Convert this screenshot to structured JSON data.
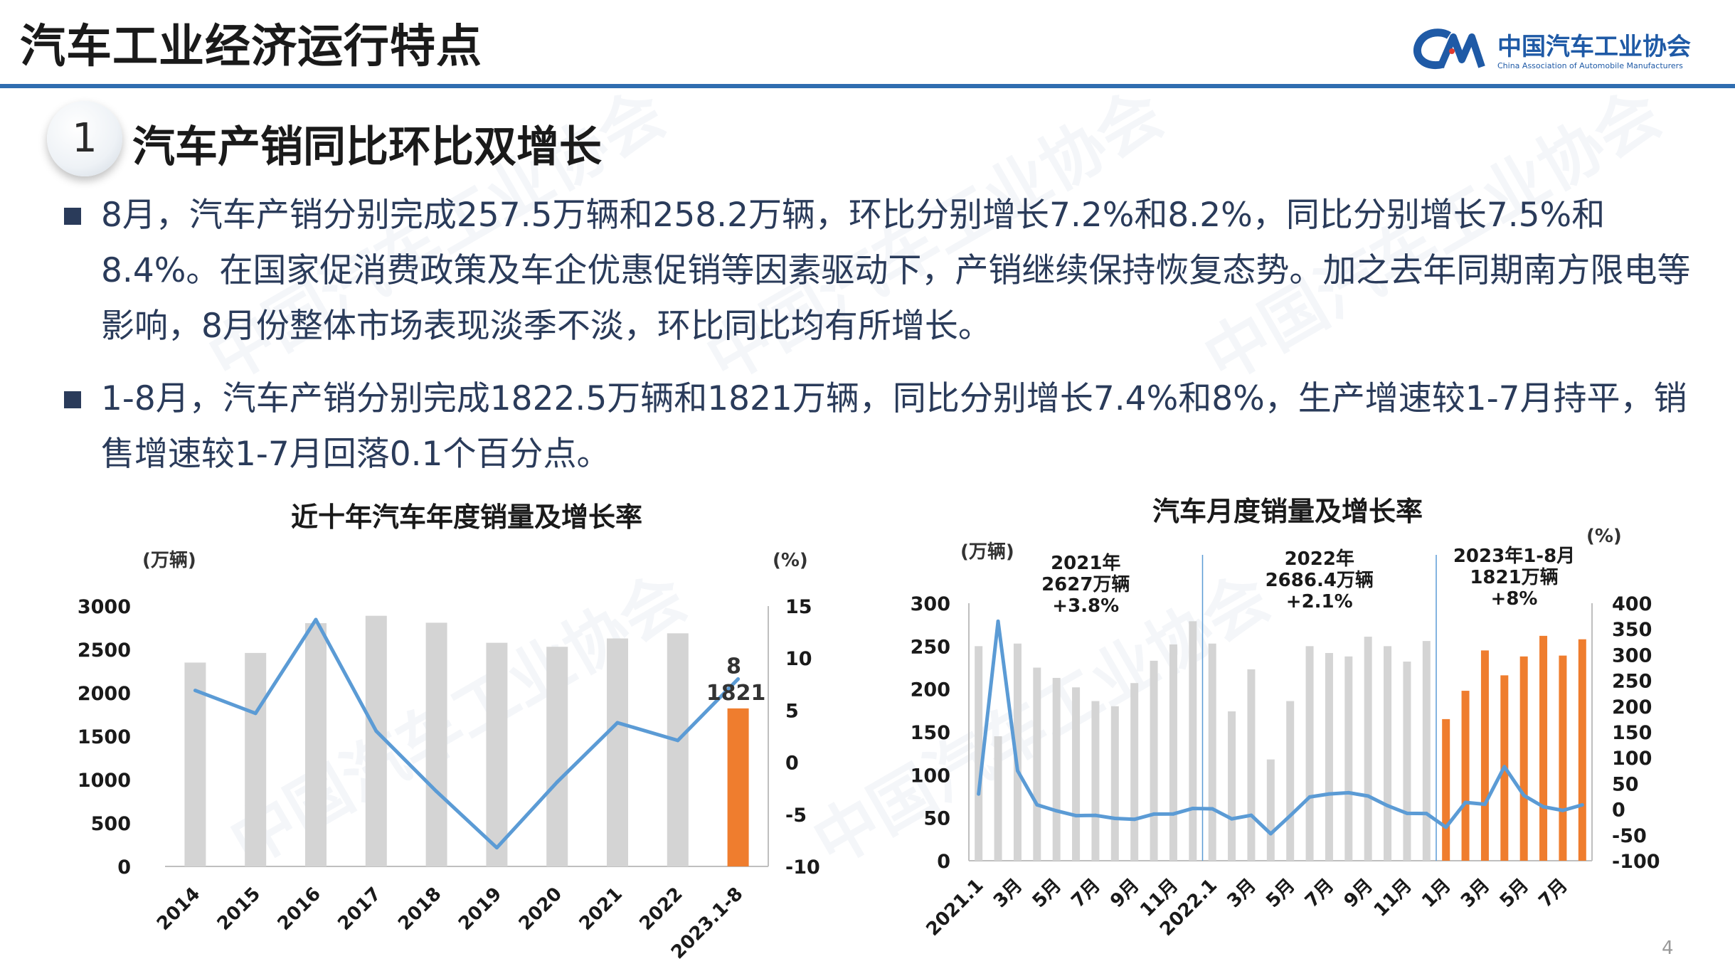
{
  "header": {
    "title": "汽车工业经济运行特点",
    "logo_cn": "中国汽车工业协会",
    "logo_en": "China Association of Automobile Manufacturers"
  },
  "section": {
    "number": "1",
    "heading": "汽车产销同比环比双增长"
  },
  "bullets": [
    "8月，汽车产销分别完成257.5万辆和258.2万辆，环比分别增长7.2%和8.2%，同比分别增长7.5%和8.4%。在国家促消费政策及车企优惠促销等因素驱动下，产销继续保持恢复态势。加之去年同期南方限电等影响，8月份整体市场表现淡季不淡，环比同比均有所增长。",
    "1-8月，汽车产销分别完成1822.5万辆和1821万辆，同比分别增长7.4%和8%，生产增速较1-7月持平，销售增速较1-7月回落0.1个百分点。"
  ],
  "page_number": "4",
  "colors": {
    "accent": "#2f6db0",
    "bar_gray": "#d4d4d4",
    "bar_orange": "#ef7d2e",
    "line_blue": "#5b9bd5",
    "text_dark": "#2a3b5a"
  },
  "chart_data": [
    {
      "type": "bar",
      "title": "近十年汽车年度销量及增长率",
      "ylabel": "(万辆)",
      "y2label": "(%)",
      "ylim": [
        0,
        3000
      ],
      "y2lim": [
        -10,
        15
      ],
      "yticks": [
        "3000",
        "2500",
        "2000",
        "1500",
        "1000",
        "500",
        "0"
      ],
      "y2ticks": [
        "15",
        "10",
        "5",
        "0",
        "-5",
        "-10"
      ],
      "categories": [
        "2014",
        "2015",
        "2016",
        "2017",
        "2018",
        "2019",
        "2020",
        "2021",
        "2022",
        "2023.1-8"
      ],
      "series": [
        {
          "kind": "bar",
          "values": [
            2349,
            2460,
            2803,
            2888,
            2808,
            2577,
            2531,
            2627,
            2686,
            1821
          ],
          "highlight_last": true
        },
        {
          "kind": "line",
          "axis": "right",
          "values": [
            6.9,
            4.7,
            13.7,
            3.0,
            -2.8,
            -8.2,
            -1.9,
            3.8,
            2.1,
            8
          ]
        }
      ],
      "annotations": [
        "8",
        "1821"
      ]
    },
    {
      "type": "bar",
      "title": "汽车月度销量及增长率",
      "ylabel": "(万辆)",
      "y2label": "(%)",
      "ylim": [
        0,
        300
      ],
      "y2lim": [
        -100,
        400
      ],
      "yticks": [
        "300",
        "250",
        "200",
        "150",
        "100",
        "50",
        "0"
      ],
      "y2ticks": [
        "400",
        "350",
        "300",
        "250",
        "200",
        "150",
        "100",
        "50",
        "0",
        "-50",
        "-100"
      ],
      "categories": [
        "2021.1",
        "2月",
        "3月",
        "4月",
        "5月",
        "6月",
        "7月",
        "8月",
        "9月",
        "10月",
        "11月",
        "12月",
        "2022.1",
        "2月",
        "3月",
        "4月",
        "5月",
        "6月",
        "7月",
        "8月",
        "9月",
        "10月",
        "11月",
        "12月",
        "1月",
        "2月",
        "3月",
        "4月",
        "5月",
        "6月",
        "7月",
        "8月"
      ],
      "xticklabels": [
        "2021.1",
        "3月",
        "5月",
        "7月",
        "9月",
        "11月",
        "2022.1",
        "3月",
        "5月",
        "7月",
        "9月",
        "11月",
        "1月",
        "3月",
        "5月",
        "7月"
      ],
      "series": [
        {
          "kind": "bar",
          "values": [
            250,
            145,
            253,
            225,
            213,
            202,
            186,
            180,
            207,
            233,
            252,
            279,
            253,
            174,
            223,
            118,
            186,
            250,
            242,
            238,
            261,
            250,
            232,
            256,
            165,
            198,
            245,
            216,
            238,
            262,
            239,
            258
          ],
          "highlight_from_index": 24
        },
        {
          "kind": "line",
          "axis": "right",
          "values": [
            29.5,
            365,
            74.9,
            8.6,
            -3.1,
            -12.4,
            -11.9,
            -17.8,
            -19.6,
            -9.4,
            -9.1,
            1.6,
            0.9,
            -18.7,
            -11.7,
            -47.6,
            -12.6,
            23.8,
            29.7,
            32.1,
            25.7,
            6.9,
            -7.9,
            -8.4,
            -35,
            13.2,
            9.7,
            82.7,
            26.8,
            4.8,
            -2.3,
            8.4
          ]
        }
      ],
      "period_labels": [
        {
          "year": "2021年",
          "total": "2627万辆",
          "growth": "+3.8%"
        },
        {
          "year": "2022年",
          "total": "2686.4万辆",
          "growth": "+2.1%"
        },
        {
          "year": "2023年1-8月",
          "total": "1821万辆",
          "growth": "+8%"
        }
      ]
    }
  ]
}
